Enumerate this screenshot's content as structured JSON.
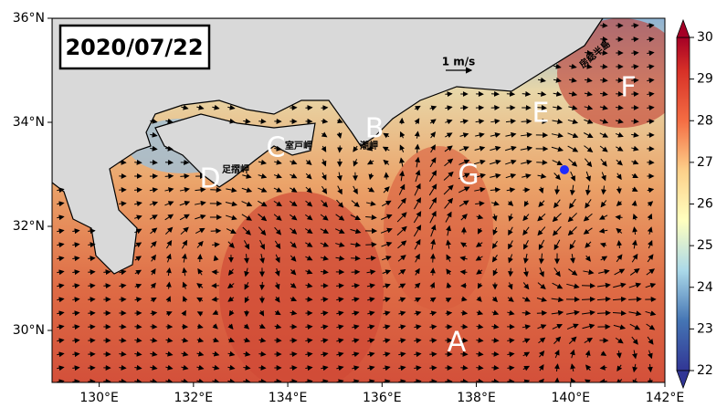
{
  "map": {
    "date": "2020/07/22",
    "scale_label": "1 m/s",
    "xlim": [
      129,
      142
    ],
    "ylim": [
      29,
      36
    ],
    "xticks": [
      {
        "value": 130,
        "label": "130°E"
      },
      {
        "value": 132,
        "label": "132°E"
      },
      {
        "value": 134,
        "label": "134°E"
      },
      {
        "value": 136,
        "label": "136°E"
      },
      {
        "value": 138,
        "label": "138°E"
      },
      {
        "value": 140,
        "label": "140°E"
      },
      {
        "value": 142,
        "label": "142°E"
      }
    ],
    "yticks": [
      {
        "value": 30,
        "label": "30°N"
      },
      {
        "value": 32,
        "label": "32°N"
      },
      {
        "value": 34,
        "label": "34°N"
      },
      {
        "value": 36,
        "label": "36°N"
      }
    ],
    "colorbar": {
      "range": [
        22,
        30
      ],
      "ticks": [
        22,
        23,
        24,
        25,
        26,
        27,
        28,
        29,
        30
      ]
    },
    "points": [
      "A",
      "B",
      "C",
      "D",
      "E",
      "F",
      "G"
    ],
    "places": [
      "室戸岬",
      "足摺岬",
      "潮岬",
      "房総半島"
    ]
  }
}
